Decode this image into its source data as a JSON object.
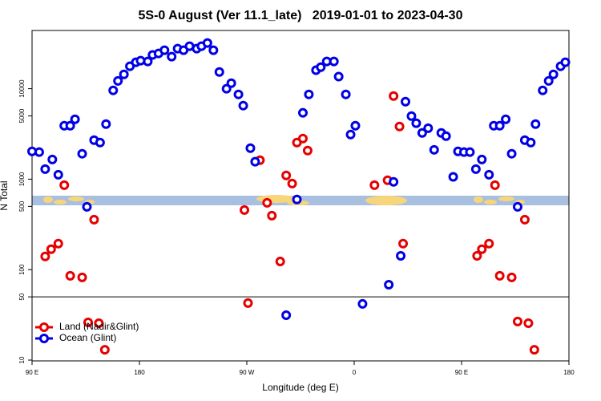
{
  "chart_data": {
    "type": "scatter",
    "title": "5S-0 August (Ver 11.1_late)   2019-01-01 to 2023-04-30",
    "x_label": "Longitude (deg E)",
    "y_label": "N Total",
    "y_log": true,
    "xlim": [
      90,
      540
    ],
    "ylim": [
      9.8,
      44000
    ],
    "xticks": [
      {
        "value": 90,
        "label": "90 E"
      },
      180,
      {
        "value": 270,
        "label": "90 W"
      },
      {
        "value": 360,
        "label": "0"
      },
      {
        "value": 450,
        "label": "90 E"
      },
      {
        "value": 540,
        "label": "180"
      }
    ],
    "yticks": [
      10,
      50,
      100,
      500,
      1000,
      5000,
      10000
    ],
    "hline": 50,
    "legend": "bottom-left",
    "series": [
      {
        "name": "Land (Nadir&Glint)",
        "color": "#e60000",
        "x": [
          101,
          106,
          112,
          117,
          122,
          132,
          137,
          142,
          146,
          151,
          268,
          271,
          281,
          287,
          291,
          298,
          303,
          308,
          312,
          317,
          321,
          377,
          388,
          393,
          398,
          401,
          463,
          467,
          473,
          478,
          482,
          492,
          497,
          503,
          506,
          511
        ],
        "values": [
          140,
          168,
          194,
          859,
          85.5,
          82,
          26.1,
          357,
          25.6,
          13,
          456,
          42.7,
          1620,
          548,
          395,
          123,
          1100,
          895,
          2540,
          2810,
          2070,
          859,
          972,
          8300,
          3820,
          194,
          142,
          168,
          194,
          859,
          85.5,
          82,
          26.7,
          357,
          25.6,
          13
        ]
      },
      {
        "name": "Ocean (Glint)",
        "color": "#0000e6",
        "x": [
          90,
          96,
          101,
          107,
          112,
          117,
          122,
          126,
          132,
          136,
          142,
          147,
          152,
          158,
          162,
          167,
          172,
          177,
          181,
          187,
          191,
          196,
          201,
          207,
          212,
          217,
          222,
          228,
          232,
          237,
          242,
          247,
          253,
          257,
          263,
          267,
          273,
          277,
          303,
          312,
          317,
          322,
          328,
          332,
          337,
          343,
          347,
          353,
          357,
          361,
          367,
          389,
          393,
          399,
          403,
          408,
          412,
          417,
          422,
          427,
          433,
          437,
          443,
          447,
          452,
          457,
          462,
          467,
          473,
          477,
          482,
          487,
          492,
          497,
          503,
          508,
          512,
          518,
          523,
          527,
          533,
          537
        ],
        "values": [
          2030,
          1990,
          1290,
          1650,
          1120,
          3900,
          3900,
          4590,
          1910,
          495,
          2700,
          2540,
          4060,
          9580,
          12200,
          14400,
          17700,
          19600,
          20400,
          20000,
          23600,
          24500,
          26600,
          22600,
          27700,
          26600,
          29500,
          27700,
          29500,
          32000,
          26600,
          15300,
          9980,
          11500,
          8650,
          6500,
          2200,
          1560,
          31.4,
          596,
          5410,
          8650,
          16000,
          17300,
          20000,
          20000,
          13600,
          8650,
          3110,
          3900,
          41.8,
          68.2,
          933,
          142,
          7190,
          4980,
          4150,
          3240,
          3660,
          2110,
          3240,
          2990,
          1060,
          2030,
          1990,
          1990,
          1290,
          1650,
          1120,
          3900,
          3900,
          4590,
          1910,
          495,
          2700,
          2540,
          4060,
          9580,
          12200,
          14400,
          17700,
          19600
        ]
      }
    ]
  }
}
